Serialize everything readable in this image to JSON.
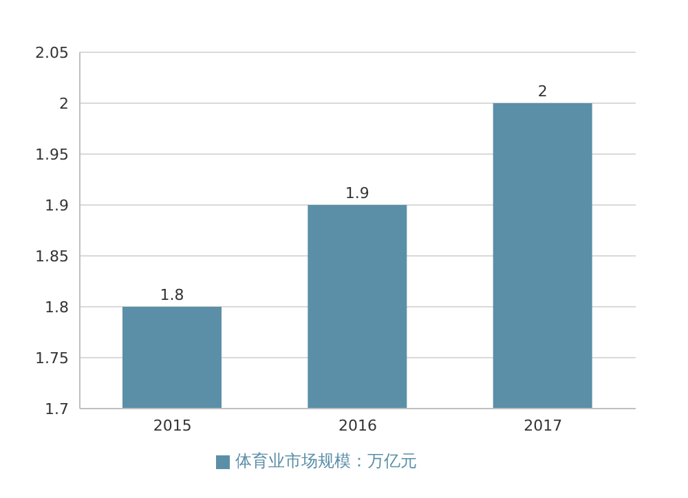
{
  "chart_data": {
    "type": "bar",
    "categories": [
      "2015",
      "2016",
      "2017"
    ],
    "series": [
      {
        "name": "体育业市场规模：万亿元",
        "color": "#5b8fa8",
        "values": [
          1.8,
          1.9,
          2
        ]
      }
    ],
    "ylim": [
      1.7,
      2.05
    ],
    "yticks": [
      1.7,
      1.75,
      1.8,
      1.85,
      1.9,
      1.95,
      2,
      2.05
    ],
    "grid": "y",
    "data_labels": true,
    "legend": "bottom"
  }
}
